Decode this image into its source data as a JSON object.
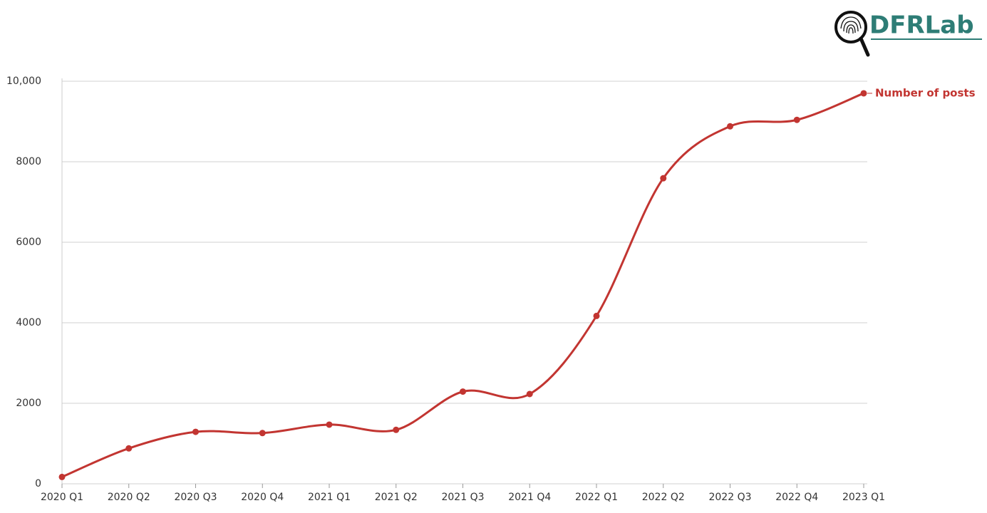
{
  "logo": "DFRLab",
  "chart_data": {
    "type": "line",
    "categories": [
      "2020 Q1",
      "2020 Q2",
      "2020 Q3",
      "2020 Q4",
      "2021 Q1",
      "2021 Q2",
      "2021 Q3",
      "2021 Q4",
      "2022 Q1",
      "2022 Q2",
      "2022 Q3",
      "2022 Q4",
      "2023 Q1"
    ],
    "series": [
      {
        "name": "Number of posts",
        "color": "#c23531",
        "values": [
          170,
          880,
          1290,
          1260,
          1470,
          1340,
          2290,
          2230,
          4170,
          7590,
          8880,
          9040,
          9700
        ]
      }
    ],
    "ylim": [
      0,
      10000
    ],
    "yticks": [
      0,
      2000,
      4000,
      6000,
      8000,
      {
        "value": 10000,
        "label": "10,000"
      }
    ],
    "grid": true
  }
}
